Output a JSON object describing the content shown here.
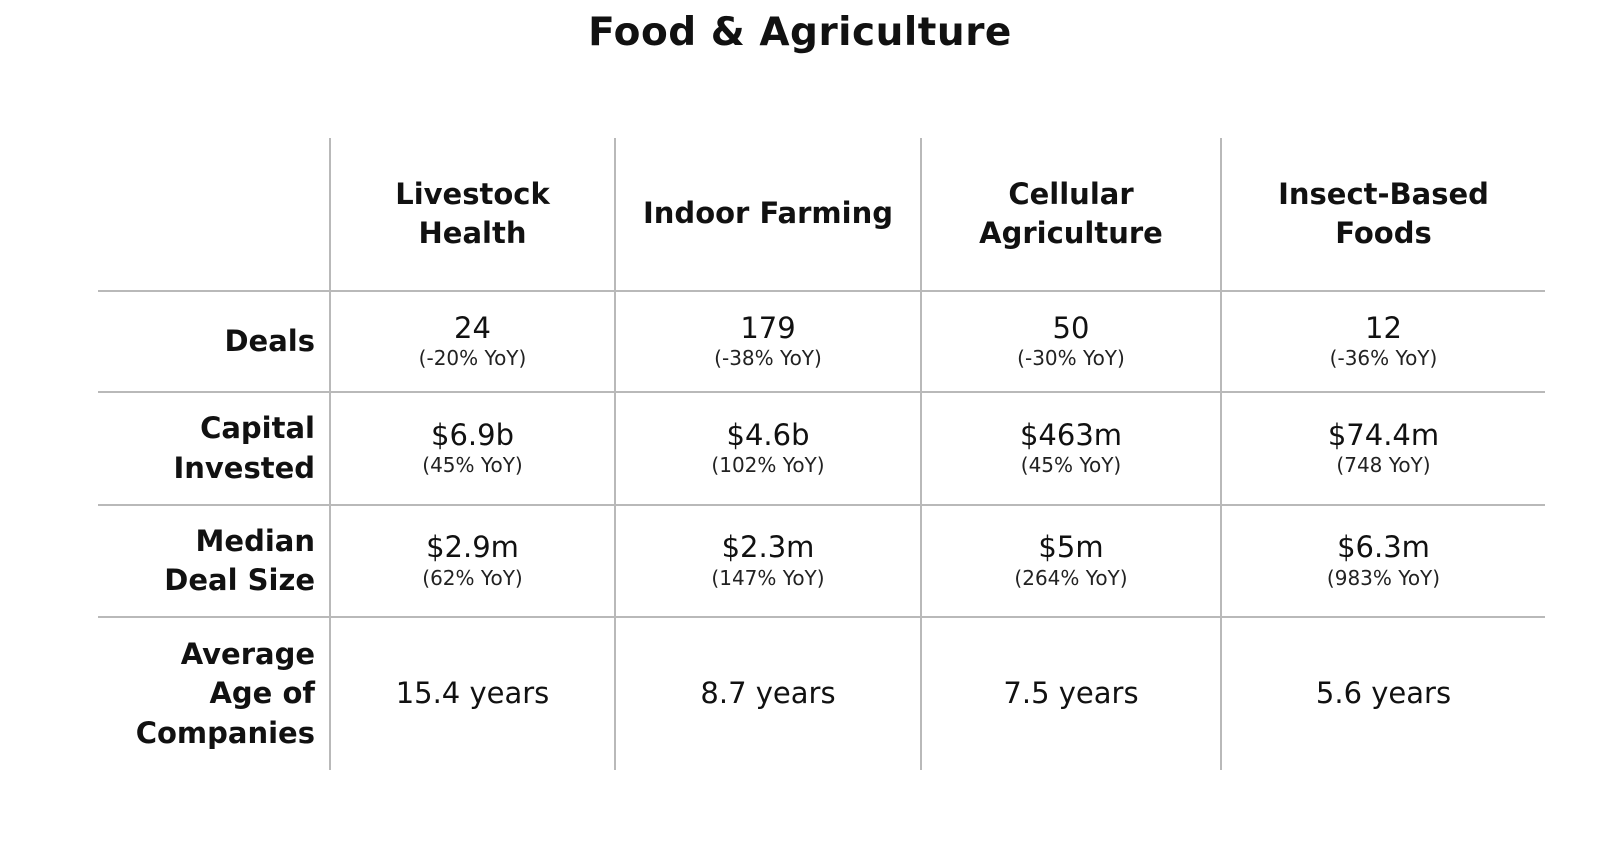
{
  "title": "Food & Agriculture",
  "columns": [
    "Livestock Health",
    "Indoor Farming",
    "Cellular Agriculture",
    "Insect-Based Foods"
  ],
  "rows": [
    {
      "label": "Deals",
      "cells": [
        {
          "value": "24",
          "yoy": "(-20% YoY)"
        },
        {
          "value": "179",
          "yoy": "(-38% YoY)"
        },
        {
          "value": "50",
          "yoy": "(-30% YoY)"
        },
        {
          "value": "12",
          "yoy": "(-36% YoY)"
        }
      ]
    },
    {
      "label": "Capital Invested",
      "cells": [
        {
          "value": "$6.9b",
          "yoy": "(45% YoY)"
        },
        {
          "value": "$4.6b",
          "yoy": "(102% YoY)"
        },
        {
          "value": "$463m",
          "yoy": "(45% YoY)"
        },
        {
          "value": "$74.4m",
          "yoy": "(748 YoY)"
        }
      ]
    },
    {
      "label": "Median Deal Size",
      "cells": [
        {
          "value": "$2.9m",
          "yoy": "(62% YoY)"
        },
        {
          "value": "$2.3m",
          "yoy": "(147% YoY)"
        },
        {
          "value": "$5m",
          "yoy": "(264% YoY)"
        },
        {
          "value": "$6.3m",
          "yoy": "(983% YoY)"
        }
      ]
    },
    {
      "label": "Average Age of Companies",
      "cells": [
        {
          "value": "15.4 years"
        },
        {
          "value": "8.7 years"
        },
        {
          "value": "7.5 years"
        },
        {
          "value": "5.6 years"
        }
      ]
    }
  ]
}
